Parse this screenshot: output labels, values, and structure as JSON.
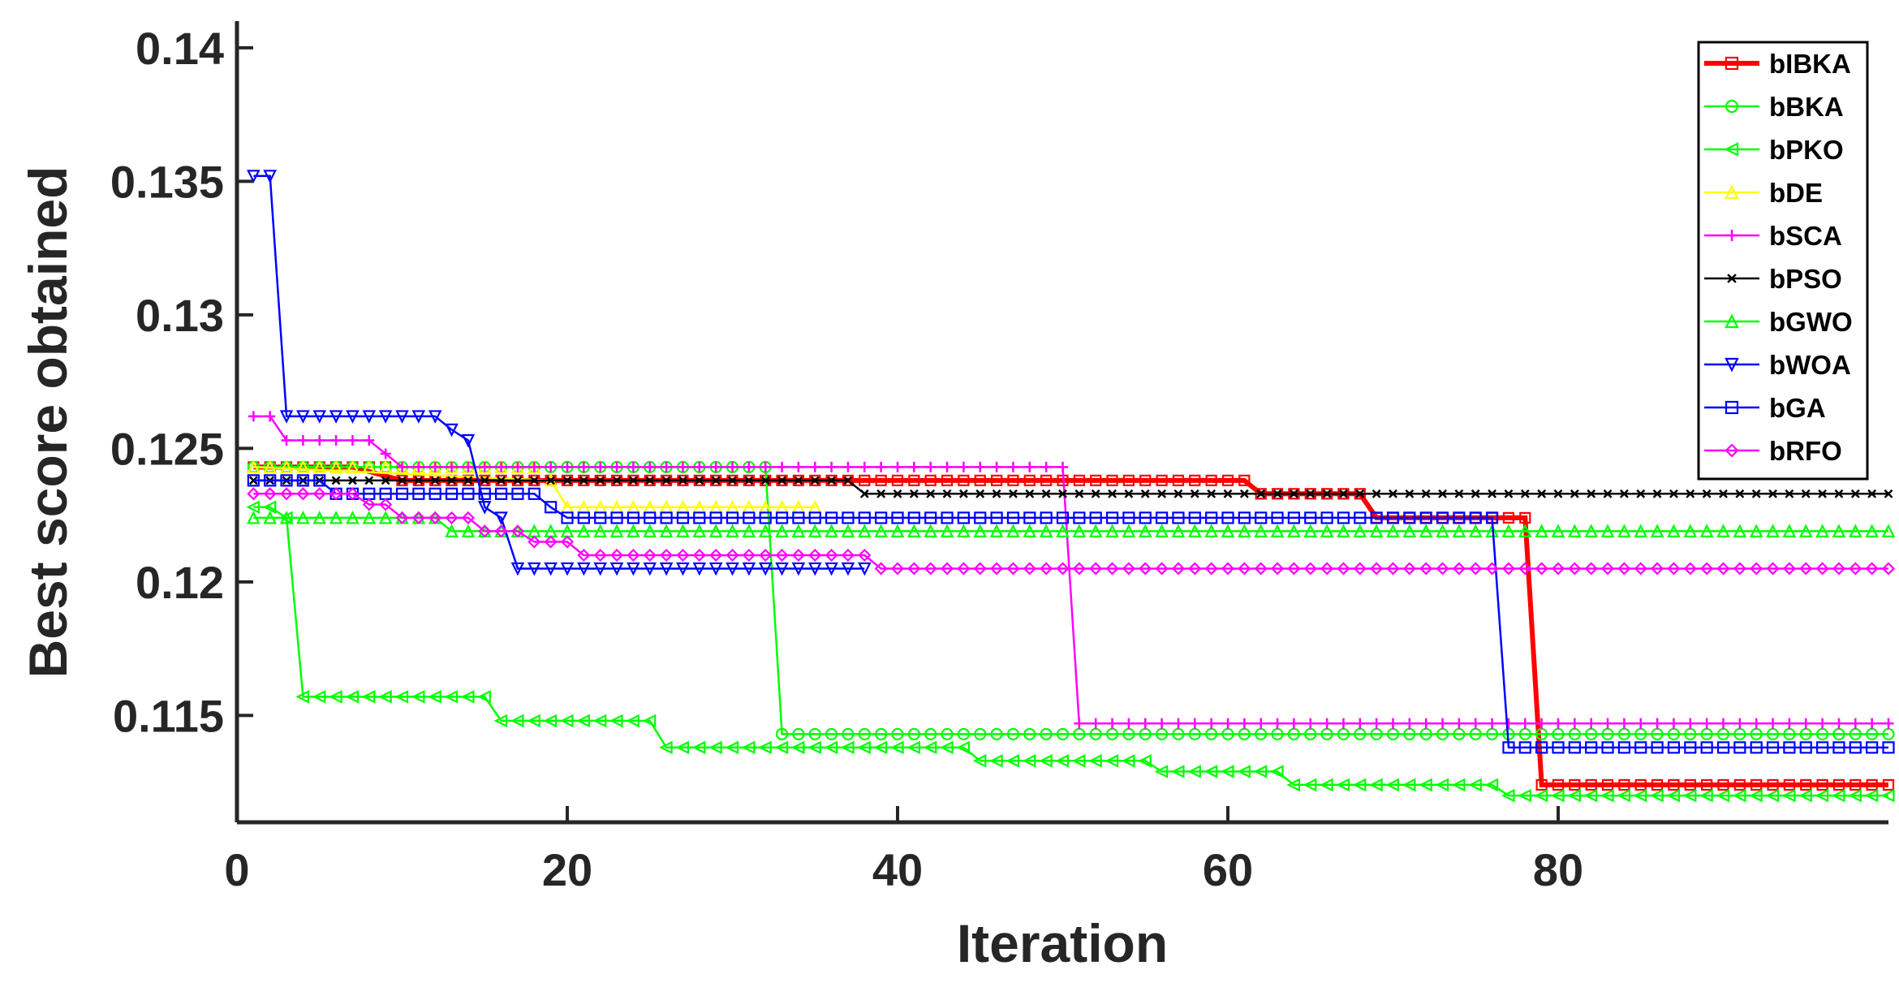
{
  "chart_data": {
    "type": "line",
    "title": "",
    "xlabel": "Iteration",
    "ylabel": "Best score obtained",
    "xlim": [
      0,
      100
    ],
    "ylim": [
      0.111,
      0.141
    ],
    "xticks": [
      0,
      20,
      40,
      60,
      80
    ],
    "xtick_labels": [
      "0",
      "20",
      "40",
      "60",
      "80"
    ],
    "yticks": [
      0.115,
      0.12,
      0.125,
      0.13,
      0.135,
      0.14
    ],
    "ytick_labels": [
      "0.115",
      "0.12",
      "0.125",
      "0.13",
      "0.135",
      "0.14"
    ],
    "grid": false,
    "legend_position": "top-right",
    "series": [
      {
        "name": "bIBKA",
        "color": "#ff0000",
        "marker": "square",
        "width": 6,
        "steps": [
          [
            1,
            0.1243
          ],
          [
            7,
            0.1243
          ],
          [
            10,
            0.1238
          ],
          [
            61,
            0.1238
          ],
          [
            62,
            0.1233
          ],
          [
            68,
            0.1233
          ],
          [
            69,
            0.1224
          ],
          [
            78,
            0.1224
          ],
          [
            79,
            0.1124
          ],
          [
            100,
            0.1124
          ]
        ]
      },
      {
        "name": "bBKA",
        "color": "#00ff00",
        "marker": "circle",
        "width": 2.5,
        "steps": [
          [
            1,
            0.1243
          ],
          [
            32,
            0.1243
          ],
          [
            33,
            0.1143
          ],
          [
            100,
            0.1143
          ]
        ]
      },
      {
        "name": "bPKO",
        "color": "#00ff00",
        "marker": "triangle-left",
        "width": 2.5,
        "steps": [
          [
            1,
            0.1228
          ],
          [
            2,
            0.1228
          ],
          [
            3,
            0.1224
          ],
          [
            4,
            0.1157
          ],
          [
            15,
            0.1157
          ],
          [
            16,
            0.1148
          ],
          [
            25,
            0.1148
          ],
          [
            26,
            0.1138
          ],
          [
            44,
            0.1138
          ],
          [
            45,
            0.1133
          ],
          [
            55,
            0.1133
          ],
          [
            56,
            0.1129
          ],
          [
            63,
            0.1129
          ],
          [
            64,
            0.1124
          ],
          [
            76,
            0.1124
          ],
          [
            77,
            0.112
          ],
          [
            100,
            0.112
          ]
        ]
      },
      {
        "name": "bDE",
        "color": "#ffff00",
        "marker": "triangle-up",
        "width": 2.5,
        "steps": [
          [
            1,
            0.1243
          ],
          [
            19,
            0.1238
          ],
          [
            20,
            0.1228
          ],
          [
            35,
            0.1228
          ]
        ]
      },
      {
        "name": "bSCA",
        "color": "#ff00ff",
        "marker": "plus",
        "width": 2.5,
        "steps": [
          [
            1,
            0.1262
          ],
          [
            2,
            0.1262
          ],
          [
            3,
            0.1253
          ],
          [
            8,
            0.1253
          ],
          [
            9,
            0.1248
          ],
          [
            10,
            0.1243
          ],
          [
            50,
            0.1243
          ],
          [
            51,
            0.1147
          ],
          [
            100,
            0.1147
          ]
        ]
      },
      {
        "name": "bPSO",
        "color": "#000000",
        "marker": "x",
        "width": 2.5,
        "steps": [
          [
            1,
            0.1238
          ],
          [
            37,
            0.1238
          ],
          [
            38,
            0.1233
          ],
          [
            100,
            0.1233
          ]
        ]
      },
      {
        "name": "bGWO",
        "color": "#00ff00",
        "marker": "triangle-up",
        "width": 2.5,
        "steps": [
          [
            1,
            0.1224
          ],
          [
            12,
            0.1224
          ],
          [
            13,
            0.1219
          ],
          [
            100,
            0.1219
          ]
        ]
      },
      {
        "name": "bWOA",
        "color": "#0000ff",
        "marker": "triangle-down",
        "width": 2.5,
        "steps": [
          [
            1,
            0.1352
          ],
          [
            2,
            0.1352
          ],
          [
            3,
            0.1262
          ],
          [
            12,
            0.1262
          ],
          [
            13,
            0.1257
          ],
          [
            14,
            0.1253
          ],
          [
            15,
            0.1228
          ],
          [
            16,
            0.1224
          ],
          [
            17,
            0.1205
          ],
          [
            38,
            0.1205
          ]
        ]
      },
      {
        "name": "bGA",
        "color": "#0000ff",
        "marker": "square",
        "width": 2.5,
        "steps": [
          [
            1,
            0.1238
          ],
          [
            5,
            0.1238
          ],
          [
            6,
            0.1233
          ],
          [
            18,
            0.1233
          ],
          [
            19,
            0.1228
          ],
          [
            20,
            0.1224
          ],
          [
            76,
            0.1224
          ],
          [
            77,
            0.1138
          ],
          [
            100,
            0.1138
          ]
        ]
      },
      {
        "name": "bRFO",
        "color": "#ff00ff",
        "marker": "diamond",
        "width": 2.5,
        "steps": [
          [
            1,
            0.1233
          ],
          [
            7,
            0.1233
          ],
          [
            8,
            0.1229
          ],
          [
            9,
            0.1229
          ],
          [
            10,
            0.1224
          ],
          [
            14,
            0.1224
          ],
          [
            15,
            0.1219
          ],
          [
            17,
            0.1219
          ],
          [
            18,
            0.1215
          ],
          [
            20,
            0.1215
          ],
          [
            21,
            0.121
          ],
          [
            38,
            0.121
          ],
          [
            39,
            0.1205
          ],
          [
            100,
            0.1205
          ]
        ]
      }
    ]
  }
}
